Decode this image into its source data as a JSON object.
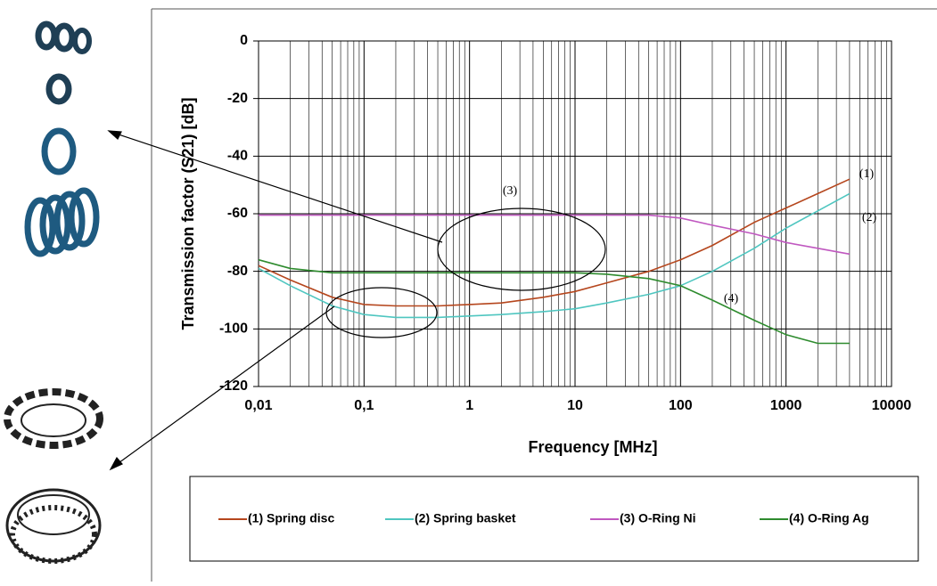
{
  "chart_data": {
    "type": "line",
    "x_log_scale": true,
    "grid": true,
    "legend_position": "bottom",
    "x_label": "Frequency [MHz]",
    "y_label": "Transmission factor (S21) [dB]",
    "x": [
      0.01,
      0.02,
      0.05,
      0.1,
      0.2,
      0.5,
      1,
      2,
      5,
      10,
      20,
      50,
      100,
      200,
      500,
      1000,
      2000,
      4000
    ],
    "xlim": [
      0.01,
      10000
    ],
    "xticks": [
      {
        "value": 0.01,
        "label": "0,01"
      },
      {
        "value": 0.1,
        "label": "0,1"
      },
      1,
      10,
      100,
      1000,
      10000
    ],
    "ylim": [
      -120,
      0
    ],
    "yticks": [
      0,
      -20,
      -40,
      -60,
      -80,
      -100,
      -120
    ],
    "series": [
      {
        "name": "(1) Spring disc",
        "color": "#b5461d",
        "values": [
          -78,
          -83,
          -89,
          -91.5,
          -92,
          -92,
          -91.5,
          -91,
          -89,
          -87,
          -84,
          -80,
          -76,
          -71,
          -63,
          -58,
          -53,
          -48
        ]
      },
      {
        "name": "(2) Spring basket",
        "color": "#4fc6c0",
        "values": [
          -79,
          -85,
          -92,
          -95,
          -96,
          -96,
          -95.5,
          -95,
          -94,
          -93,
          -91,
          -88,
          -85,
          -80,
          -72,
          -65,
          -59,
          -53
        ]
      },
      {
        "name": "(3) O-Ring Ni",
        "color": "#c058c0",
        "values": [
          -60.5,
          -60.5,
          -60.5,
          -60.5,
          -60.5,
          -60.5,
          -60.5,
          -60.5,
          -60.5,
          -60.5,
          -60.5,
          -60.5,
          -61.5,
          -64,
          -67,
          -70,
          -72,
          -74
        ]
      },
      {
        "name": "(4) O-Ring Ag",
        "color": "#2e8b2e",
        "values": [
          -76,
          -79,
          -80.5,
          -80.5,
          -80.5,
          -80.5,
          -80.5,
          -80.5,
          -80.5,
          -80.5,
          -81,
          -82.5,
          -85,
          -90,
          -97,
          -102,
          -105,
          -105
        ]
      }
    ],
    "annotations": [
      "(1)",
      "(2)",
      "(3)",
      "(4)"
    ]
  }
}
